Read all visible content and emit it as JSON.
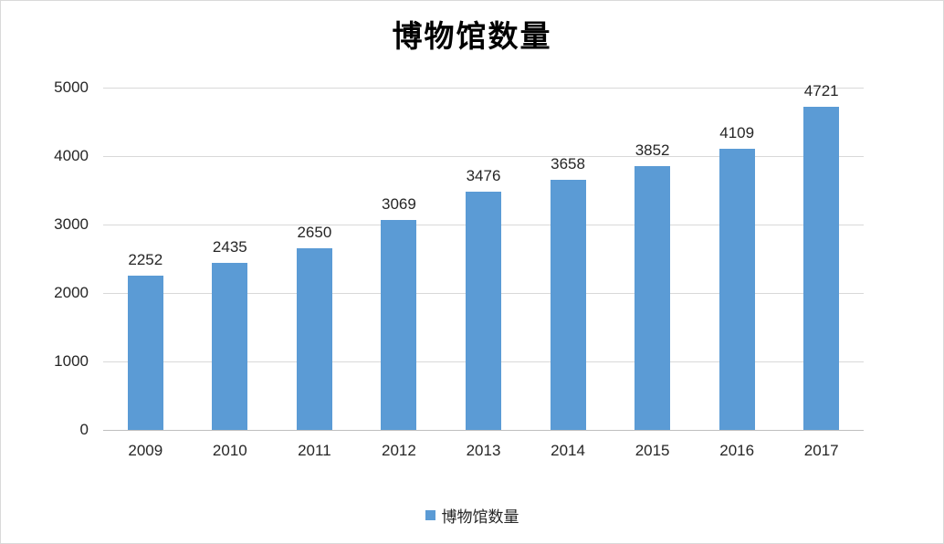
{
  "chart_data": {
    "type": "bar",
    "title": "博物馆数量",
    "categories": [
      "2009",
      "2010",
      "2011",
      "2012",
      "2013",
      "2014",
      "2015",
      "2016",
      "2017"
    ],
    "values": [
      2252,
      2435,
      2650,
      3069,
      3476,
      3658,
      3852,
      4109,
      4721
    ],
    "xlabel": "",
    "ylabel": "",
    "ylim": [
      0,
      5000
    ],
    "yticks": [
      0,
      1000,
      2000,
      3000,
      4000,
      5000
    ],
    "grid": true,
    "data_labels": true,
    "legend": [
      "博物馆数量"
    ],
    "legend_position": "bottom"
  },
  "colors": {
    "bar_fill": "#5b9bd5",
    "gridline": "#d9d9d9",
    "axis_line": "#bfbfbf",
    "text": "#262626",
    "border": "#d9d9d9"
  }
}
